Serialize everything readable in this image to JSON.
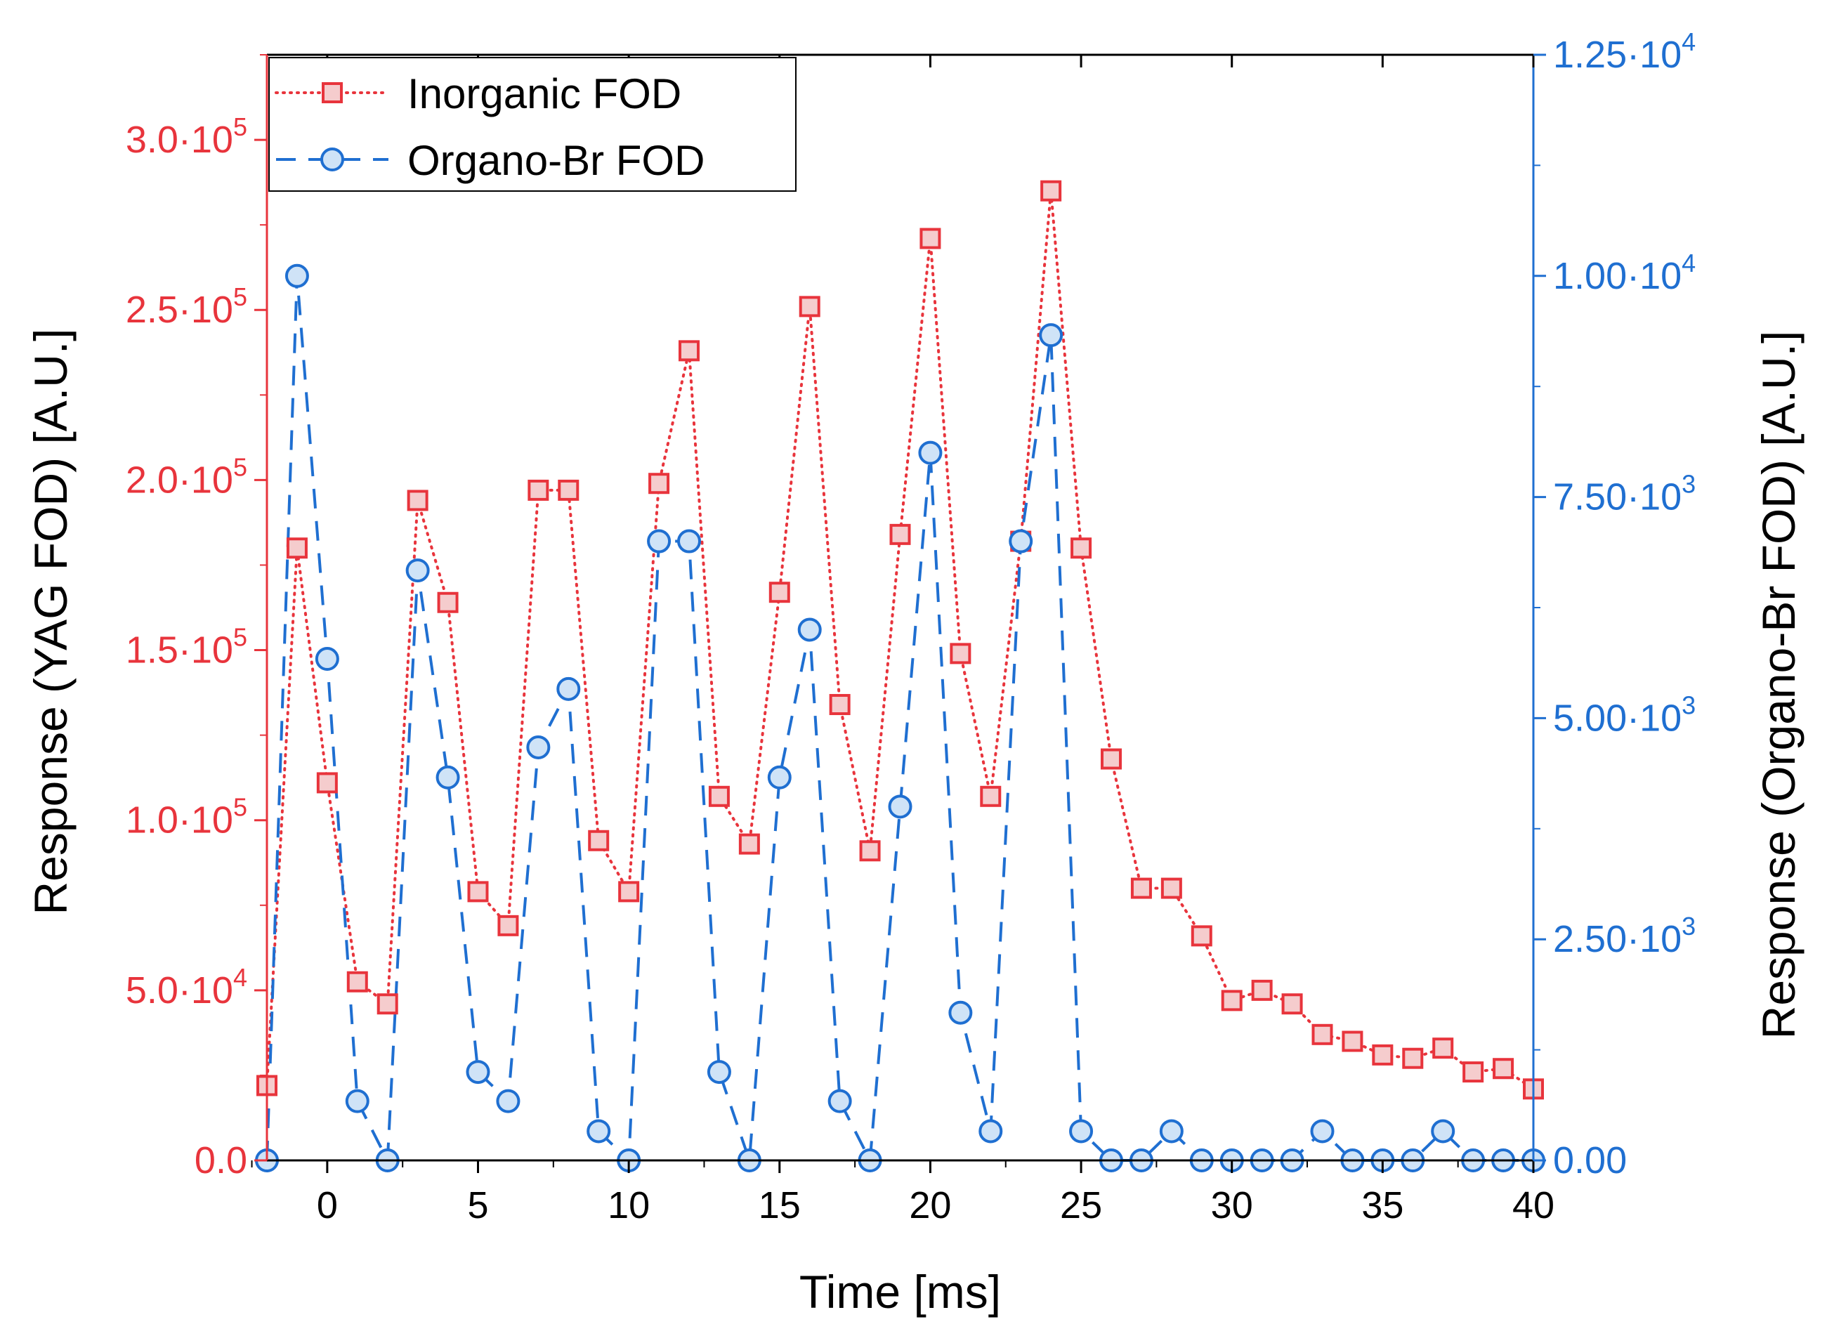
{
  "chart_data": {
    "type": "line",
    "xlabel": "Time [ms]",
    "ylabel_left": "Response (YAG FOD) [A.U.]",
    "ylabel_right": "Response (Organo-Br FOD) [A.U.]",
    "xlim": [
      -2,
      40
    ],
    "ylim_left": [
      0,
      325000
    ],
    "ylim_right": [
      0,
      12500
    ],
    "x_ticks": [
      0,
      5,
      10,
      15,
      20,
      25,
      30,
      35,
      40
    ],
    "x_tick_labels": [
      "0",
      "5",
      "10",
      "15",
      "20",
      "25",
      "30",
      "35",
      "40"
    ],
    "y_left_ticks": [
      {
        "value": 0,
        "mant": "0.0",
        "exp": ""
      },
      {
        "value": 50000,
        "mant": "5.0·10",
        "exp": "4"
      },
      {
        "value": 100000,
        "mant": "1.0·10",
        "exp": "5"
      },
      {
        "value": 150000,
        "mant": "1.5·10",
        "exp": "5"
      },
      {
        "value": 200000,
        "mant": "2.0·10",
        "exp": "5"
      },
      {
        "value": 250000,
        "mant": "2.5·10",
        "exp": "5"
      },
      {
        "value": 300000,
        "mant": "3.0·10",
        "exp": "5"
      }
    ],
    "y_right_ticks": [
      {
        "value": 0,
        "mant": "0.00",
        "exp": ""
      },
      {
        "value": 2500,
        "mant": "2.50·10",
        "exp": "3"
      },
      {
        "value": 5000,
        "mant": "5.00·10",
        "exp": "3"
      },
      {
        "value": 7500,
        "mant": "7.50·10",
        "exp": "3"
      },
      {
        "value": 10000,
        "mant": "1.00·10",
        "exp": "4"
      },
      {
        "value": 12500,
        "mant": "1.25·10",
        "exp": "4"
      }
    ],
    "colors": {
      "left": "#e8343c",
      "right": "#1f6fd1",
      "marker_fill_left": "#f5cccd",
      "marker_fill_right": "#cfe3f7"
    },
    "legend": {
      "position": "top-left",
      "entries": [
        "Inorganic FOD",
        "Organo-Br FOD"
      ]
    },
    "series": [
      {
        "name": "Inorganic FOD",
        "axis": "left",
        "marker": "square",
        "line": "dotted",
        "x": [
          -2,
          -1,
          0,
          1,
          2,
          3,
          4,
          5,
          6,
          7,
          8,
          9,
          10,
          11,
          12,
          13,
          14,
          15,
          16,
          17,
          18,
          19,
          20,
          21,
          22,
          23,
          24,
          25,
          26,
          27,
          28,
          29,
          30,
          31,
          32,
          33,
          34,
          35,
          36,
          37,
          38,
          39,
          40
        ],
        "values": [
          22000,
          180000,
          111000,
          52500,
          46000,
          194000,
          164000,
          79000,
          69000,
          197000,
          197000,
          94000,
          79000,
          199000,
          238000,
          107000,
          93000,
          167000,
          251000,
          134000,
          91000,
          184000,
          271000,
          149000,
          107000,
          182000,
          285000,
          180000,
          118000,
          80000,
          80000,
          66000,
          47000,
          50000,
          46000,
          37000,
          35000,
          31000,
          30000,
          33000,
          26000,
          27000,
          21000
        ]
      },
      {
        "name": "Organo-Br FOD",
        "axis": "right",
        "marker": "circle",
        "line": "dashed",
        "x": [
          -2,
          -1,
          0,
          1,
          2,
          3,
          4,
          5,
          6,
          7,
          8,
          9,
          10,
          11,
          12,
          13,
          14,
          15,
          16,
          17,
          18,
          19,
          20,
          21,
          22,
          23,
          24,
          25,
          26,
          27,
          28,
          29,
          30,
          31,
          32,
          33,
          34,
          35,
          36,
          37,
          38,
          39,
          40
        ],
        "values": [
          0,
          10000,
          5670,
          670,
          0,
          6670,
          4330,
          1000,
          670,
          4670,
          5330,
          330,
          0,
          7000,
          7000,
          1000,
          0,
          4330,
          6000,
          670,
          0,
          4000,
          8000,
          1670,
          330,
          7000,
          9330,
          330,
          0,
          0,
          330,
          0,
          0,
          0,
          0,
          330,
          0,
          0,
          0,
          330,
          0,
          0,
          0
        ]
      }
    ]
  }
}
